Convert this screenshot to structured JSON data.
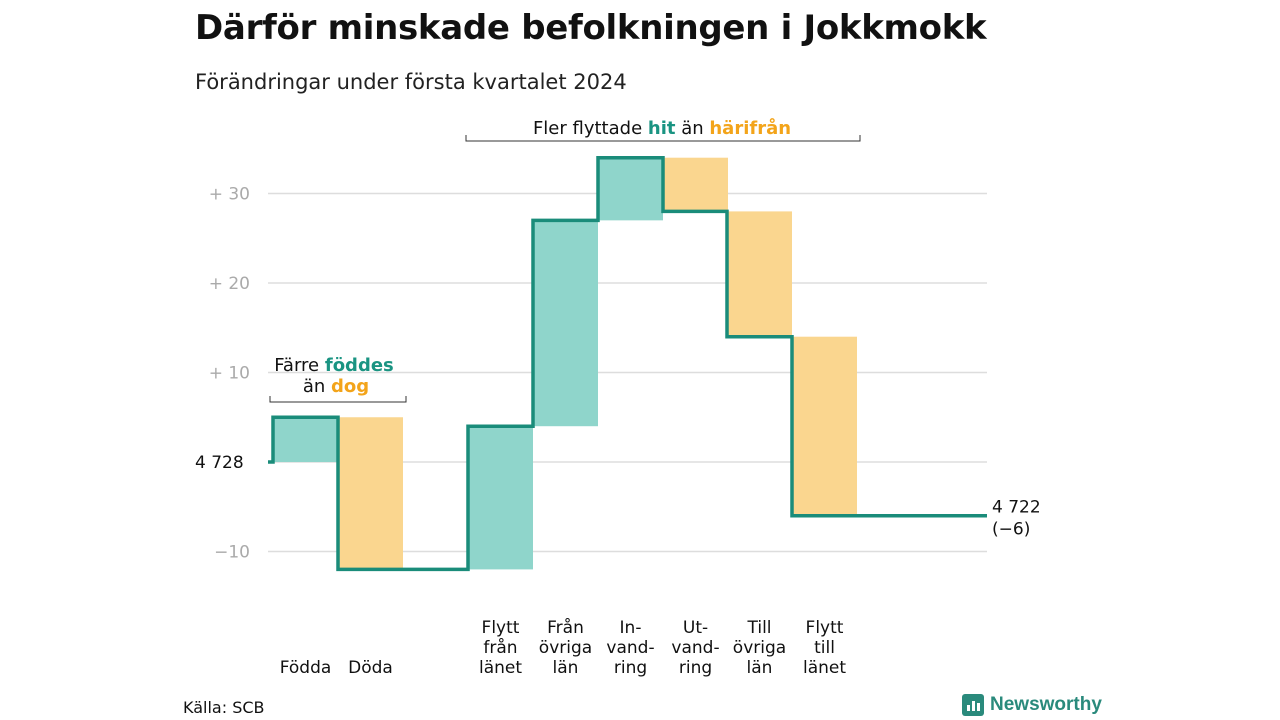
{
  "title": "Därför minskade befolkningen i Jokkmokk",
  "subtitle": "Förändringar under första kvartalet 2024",
  "source": "Källa: SCB",
  "brand": "Newsworthy",
  "colors": {
    "in": "#8fd5cb",
    "out": "#fad68f",
    "line": "#1a8c7a",
    "accent_in": "#1a9482",
    "accent_out": "#f3a41a",
    "grid": "#dddddd"
  },
  "chart_data": {
    "type": "waterfall",
    "start_label": "4  728",
    "end_label": "4 722",
    "end_change": "(−6)",
    "y_ticks": [
      {
        "value": 30,
        "label": "+  30"
      },
      {
        "value": 20,
        "label": "+  20"
      },
      {
        "value": 10,
        "label": "+  10"
      },
      {
        "value": -10,
        "label": "−10"
      }
    ],
    "ylim": [
      -14,
      38
    ],
    "steps": [
      {
        "label": [
          "Födda"
        ],
        "delta": 5,
        "kind": "in"
      },
      {
        "label": [
          "Döda"
        ],
        "delta": -17,
        "kind": "out"
      },
      {
        "label": [
          "Flytt",
          "från",
          "länet"
        ],
        "delta": 16,
        "kind": "in"
      },
      {
        "label": [
          "Från",
          "övriga",
          "län"
        ],
        "delta": 23,
        "kind": "in"
      },
      {
        "label": [
          "In-",
          "vand-",
          "ring"
        ],
        "delta": 7,
        "kind": "in"
      },
      {
        "label": [
          "Ut-",
          "vand-",
          "ring"
        ],
        "delta": -6,
        "kind": "out"
      },
      {
        "label": [
          "Till",
          "övriga",
          "län"
        ],
        "delta": -14,
        "kind": "out"
      },
      {
        "label": [
          "Flytt",
          "till",
          "länet"
        ],
        "delta": -20,
        "kind": "out"
      }
    ],
    "annotations": {
      "births": {
        "line1_prefix": "Färre ",
        "line1_accent": "föddes",
        "line2_prefix": "än ",
        "line2_accent": "dog"
      },
      "migration": {
        "prefix": "Fler flyttade ",
        "accent_in": "hit",
        "middle": " än ",
        "accent_out": "härifrån"
      }
    }
  }
}
